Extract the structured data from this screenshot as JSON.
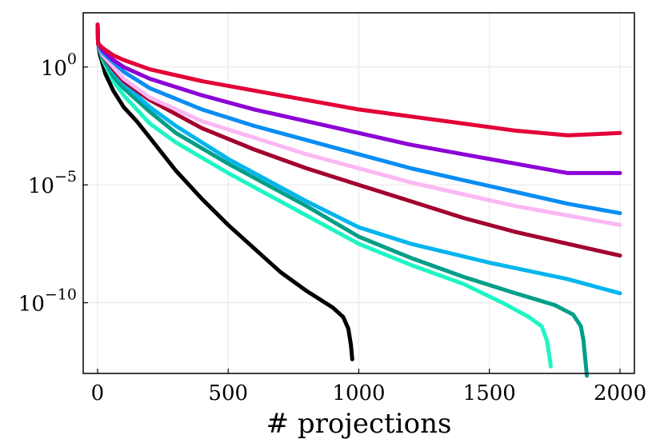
{
  "chart_data": {
    "type": "line",
    "title": "",
    "xlabel": "# projections",
    "ylabel": "",
    "yscale": "log10",
    "xlim": [
      -55,
      2055
    ],
    "ylim_log10": [
      -13.0,
      2.3
    ],
    "grid": true,
    "legend": "none",
    "xticks": [
      {
        "value": 0,
        "label": "0"
      },
      {
        "value": 500,
        "label": "500"
      },
      {
        "value": 1000,
        "label": "1000"
      },
      {
        "value": 1500,
        "label": "1500"
      },
      {
        "value": 2000,
        "label": "2000"
      }
    ],
    "yticks": [
      {
        "value_log10": 0,
        "base": "10",
        "exp": "0"
      },
      {
        "value_log10": -5,
        "base": "10",
        "exp": "−5"
      },
      {
        "value_log10": -10,
        "base": "10",
        "exp": "−10"
      }
    ],
    "series": [
      {
        "name": "black",
        "color": "#000000",
        "x": [
          0,
          2,
          10,
          30,
          60,
          100,
          150,
          200,
          300,
          400,
          500,
          600,
          700,
          800,
          900,
          940,
          960,
          970,
          975
        ],
        "log10_y": [
          1.8,
          1.0,
          0.5,
          -0.3,
          -1.0,
          -1.7,
          -2.3,
          -3.0,
          -4.4,
          -5.6,
          -6.7,
          -7.7,
          -8.7,
          -9.5,
          -10.2,
          -10.6,
          -11.1,
          -11.8,
          -12.4
        ]
      },
      {
        "name": "mint",
        "color": "#1ef5c4",
        "x": [
          0,
          2,
          20,
          60,
          100,
          200,
          300,
          500,
          800,
          1000,
          1200,
          1400,
          1550,
          1650,
          1700,
          1720,
          1730,
          1735
        ],
        "log10_y": [
          1.8,
          1.0,
          0.3,
          -0.6,
          -1.2,
          -2.4,
          -3.2,
          -4.5,
          -6.3,
          -7.5,
          -8.4,
          -9.2,
          -10.0,
          -10.6,
          -11.0,
          -11.6,
          -12.3,
          -12.7
        ]
      },
      {
        "name": "teal",
        "color": "#009e88",
        "x": [
          0,
          2,
          20,
          60,
          100,
          200,
          300,
          500,
          800,
          1000,
          1200,
          1400,
          1600,
          1750,
          1820,
          1850,
          1860,
          1868,
          1873
        ],
        "log10_y": [
          1.8,
          1.0,
          0.4,
          -0.4,
          -0.9,
          -1.9,
          -2.8,
          -4.1,
          -5.9,
          -7.2,
          -8.1,
          -8.9,
          -9.6,
          -10.1,
          -10.5,
          -11.0,
          -11.6,
          -12.5,
          -13.1
        ]
      },
      {
        "name": "light-blue",
        "color": "#00b5ee",
        "x": [
          0,
          2,
          20,
          60,
          100,
          200,
          300,
          500,
          800,
          1000,
          1200,
          1500,
          1800,
          2000
        ],
        "log10_y": [
          1.8,
          1.0,
          0.5,
          -0.2,
          -0.7,
          -1.7,
          -2.5,
          -3.9,
          -5.7,
          -6.8,
          -7.5,
          -8.3,
          -9.0,
          -9.6
        ]
      },
      {
        "name": "dark-red",
        "color": "#a2002e",
        "x": [
          0,
          2,
          20,
          60,
          100,
          200,
          400,
          600,
          800,
          1000,
          1200,
          1400,
          1600,
          1800,
          2000
        ],
        "log10_y": [
          1.8,
          1.0,
          0.5,
          -0.1,
          -0.6,
          -1.4,
          -2.6,
          -3.5,
          -4.3,
          -5.0,
          -5.7,
          -6.4,
          -7.0,
          -7.5,
          -8.0
        ]
      },
      {
        "name": "pink",
        "color": "#fbb7f3",
        "x": [
          0,
          2,
          20,
          60,
          100,
          200,
          400,
          600,
          800,
          1000,
          1200,
          1400,
          1600,
          1800,
          2000
        ],
        "log10_y": [
          1.8,
          1.0,
          0.5,
          0.0,
          -0.5,
          -1.3,
          -2.3,
          -3.0,
          -3.7,
          -4.3,
          -4.9,
          -5.4,
          -5.9,
          -6.3,
          -6.7
        ]
      },
      {
        "name": "blue",
        "color": "#0a8df2",
        "x": [
          0,
          2,
          20,
          60,
          100,
          200,
          400,
          600,
          800,
          1000,
          1200,
          1400,
          1600,
          1800,
          2000
        ],
        "log10_y": [
          1.8,
          1.0,
          0.6,
          0.2,
          -0.2,
          -0.9,
          -1.8,
          -2.5,
          -3.1,
          -3.7,
          -4.3,
          -4.8,
          -5.3,
          -5.8,
          -6.2
        ]
      },
      {
        "name": "purple",
        "color": "#8c00d5",
        "x": [
          0,
          2,
          20,
          60,
          100,
          200,
          400,
          600,
          800,
          1000,
          1200,
          1400,
          1600,
          1800,
          2000
        ],
        "log10_y": [
          1.8,
          1.0,
          0.7,
          0.3,
          0.0,
          -0.5,
          -1.2,
          -1.8,
          -2.3,
          -2.8,
          -3.3,
          -3.7,
          -4.1,
          -4.5,
          -4.5
        ]
      },
      {
        "name": "crimson",
        "color": "#e20037",
        "x": [
          0,
          2,
          20,
          60,
          100,
          200,
          400,
          600,
          800,
          1000,
          1200,
          1400,
          1600,
          1800,
          2000
        ],
        "log10_y": [
          1.8,
          1.0,
          0.8,
          0.5,
          0.3,
          -0.1,
          -0.6,
          -1.0,
          -1.4,
          -1.8,
          -2.1,
          -2.4,
          -2.7,
          -2.9,
          -2.8
        ]
      }
    ]
  }
}
